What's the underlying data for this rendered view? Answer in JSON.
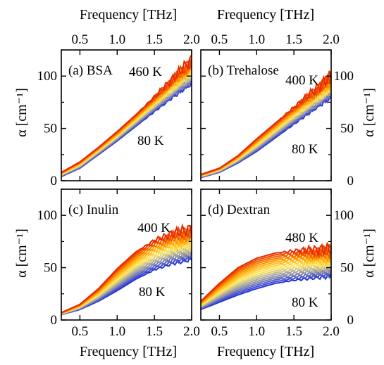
{
  "chart_data": {
    "type": "line",
    "x_label": "Frequency [THz]",
    "y_label": "α [cm⁻¹]",
    "xlim": [
      0.25,
      2.0
    ],
    "ylim": [
      0,
      125
    ],
    "x_ticks": [
      "0.5",
      "1.0",
      "1.5",
      "2.0"
    ],
    "x_tick_values": [
      0.5,
      1.0,
      1.5,
      2.0
    ],
    "y_ticks": [
      "0",
      "50",
      "100"
    ],
    "y_tick_values": [
      0,
      50,
      100
    ],
    "color_scale": [
      "#2233dd",
      "#9a9aa6",
      "#ffee66",
      "#ffa000",
      "#e82a00"
    ],
    "panels": [
      {
        "label": "(a) BSA",
        "t_min_label": "80 K",
        "t_max_label": "460 K",
        "x": [
          0.25,
          0.5,
          0.75,
          1.0,
          1.25,
          1.5,
          1.75,
          2.0
        ],
        "series_low": [
          4,
          12,
          25,
          38,
          52,
          66,
          80,
          93
        ],
        "series_high": [
          8,
          18,
          32,
          47,
          63,
          80,
          98,
          116
        ]
      },
      {
        "label": "(b) Trehalose",
        "t_min_label": "80 K",
        "t_max_label": "400 K",
        "x": [
          0.25,
          0.5,
          0.75,
          1.0,
          1.25,
          1.5,
          1.75,
          2.0
        ],
        "series_low": [
          3,
          8,
          17,
          28,
          41,
          54,
          67,
          80
        ],
        "series_high": [
          6,
          12,
          24,
          40,
          55,
          70,
          85,
          100
        ]
      },
      {
        "label": "(c) Inulin",
        "t_min_label": "80 K",
        "t_max_label": "400 K",
        "x": [
          0.25,
          0.5,
          0.75,
          1.0,
          1.25,
          1.5,
          1.75,
          2.0
        ],
        "series_low": [
          5,
          10,
          18,
          28,
          39,
          48,
          54,
          58
        ],
        "series_high": [
          7,
          15,
          30,
          49,
          65,
          76,
          83,
          87
        ]
      },
      {
        "label": "(d) Dextran",
        "t_min_label": "80 K",
        "t_max_label": "480 K",
        "x": [
          0.25,
          0.5,
          0.75,
          1.0,
          1.25,
          1.5,
          1.75,
          2.0
        ],
        "series_low": [
          10,
          17,
          24,
          30,
          35,
          38,
          40,
          42
        ],
        "series_high": [
          18,
          35,
          50,
          59,
          64,
          66,
          67,
          68
        ]
      }
    ]
  }
}
